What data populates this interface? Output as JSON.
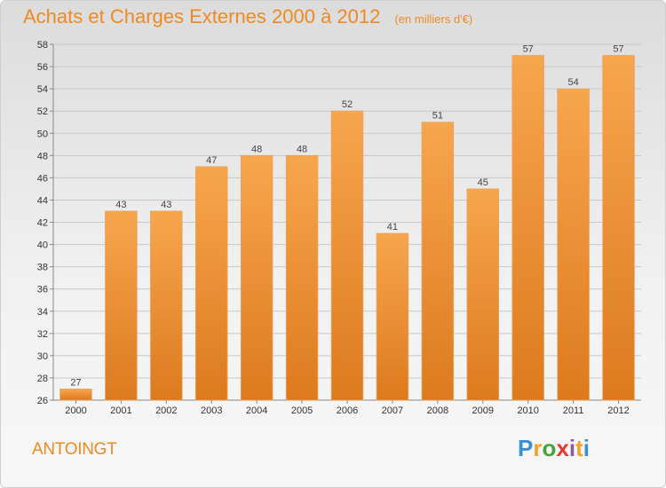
{
  "header": {
    "title": "Achats et Charges Externes 2000 à 2012",
    "subtitle": "(en milliers d'€)"
  },
  "footer": {
    "commune": "ANTOINGT",
    "logo_text": "Proxiti"
  },
  "colors": {
    "bar_top": "#f7a64e",
    "bar_bottom": "#dd7a1e",
    "accent": "#f08a1e"
  },
  "chart_data": {
    "type": "bar",
    "categories": [
      "2000",
      "2001",
      "2002",
      "2003",
      "2004",
      "2005",
      "2006",
      "2007",
      "2008",
      "2009",
      "2010",
      "2011",
      "2012"
    ],
    "values": [
      27,
      43,
      43,
      47,
      48,
      48,
      52,
      41,
      51,
      45,
      57,
      54,
      57
    ],
    "title": "Achats et Charges Externes 2000 à 2012",
    "subtitle": "(en milliers d'€)",
    "ylim": [
      26,
      58
    ],
    "yticks": [
      26,
      28,
      30,
      32,
      34,
      36,
      38,
      40,
      42,
      44,
      46,
      48,
      50,
      52,
      54,
      56,
      58
    ],
    "grid": true,
    "legend": "none"
  }
}
